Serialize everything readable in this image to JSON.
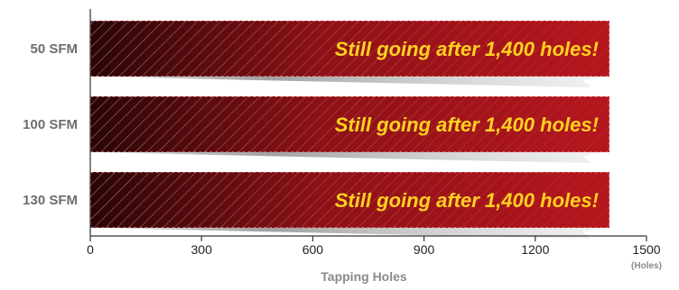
{
  "chart_data": {
    "type": "bar",
    "orientation": "horizontal",
    "categories": [
      "50 SFM",
      "100 SFM",
      "130 SFM"
    ],
    "values": [
      1400,
      1400,
      1400
    ],
    "bar_annotations": [
      "Still going after 1,400 holes!",
      "Still going after 1,400 holes!",
      "Still going after 1,400 holes!"
    ],
    "xlabel": "Tapping Holes",
    "x_unit": "(Holes)",
    "xlim": [
      0,
      1500
    ],
    "xticks": [
      0,
      300,
      600,
      900,
      1200,
      1500
    ],
    "grid": false,
    "colors": {
      "bar": "#b5161d",
      "bar_dark": "#2a0506",
      "text": "#ffd21f",
      "axis": "#333333"
    }
  }
}
